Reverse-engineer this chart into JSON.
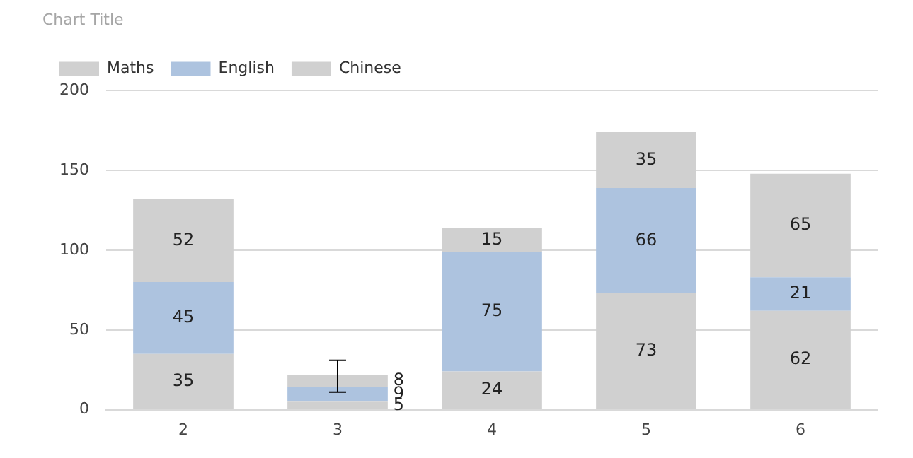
{
  "chart_data": {
    "type": "bar",
    "title": "Chart Title",
    "stacked": true,
    "categories": [
      "2",
      "3",
      "4",
      "5",
      "6"
    ],
    "series": [
      {
        "name": "Maths",
        "color": "#d0d0d0",
        "values": [
          35,
          5,
          24,
          73,
          62
        ]
      },
      {
        "name": "English",
        "color": "#adc3df",
        "values": [
          45,
          9,
          75,
          66,
          21
        ]
      },
      {
        "name": "Chinese",
        "color": "#d0d0d0",
        "values": [
          52,
          8,
          15,
          35,
          65
        ],
        "errors": [
          null,
          [
            11,
            31
          ],
          null,
          null,
          null
        ]
      }
    ],
    "ylim": [
      0,
      200
    ],
    "yticks": [
      0,
      50,
      100,
      150,
      200
    ],
    "grid": "y",
    "legend": "top left",
    "data_labels": true
  }
}
